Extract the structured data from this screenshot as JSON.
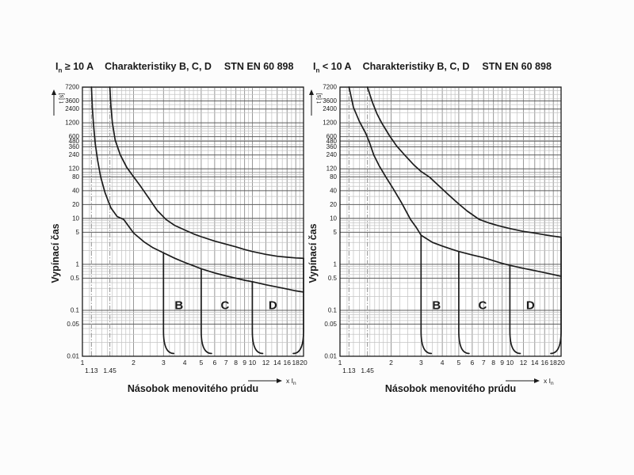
{
  "page": {
    "background": "#fcfcfc"
  },
  "colors": {
    "text": "#1a1a1a",
    "curve": "#1c1c1c",
    "plot_border": "#1c1c1c",
    "grid_minor": "#c4c4c4",
    "grid_mid": "#8d8d8d",
    "grid_labeled": "#5c5c5c",
    "ref_line": "#9e9e9e",
    "plot_bg": "#ffffff"
  },
  "chart_data": [
    {
      "type": "line",
      "title": {
        "symbol": "I",
        "symbol_sub": "n",
        "condition": "≥ 10 A",
        "name": "Charakteristiky B, C, D",
        "standard": "STN EN 60 898"
      },
      "ylabel": "Vypínací čas",
      "y_arrow_label": "t [s]",
      "xlabel": "Násobok menovitého prúdu",
      "x_arrow_label": "x I",
      "x_arrow_sub": "n",
      "xscale": "log",
      "yscale": "log",
      "xlim": [
        1,
        20
      ],
      "ylim": [
        0.01,
        7200
      ],
      "xticks": [
        {
          "v": 1,
          "label": "1"
        },
        {
          "v": 2,
          "label": "2"
        },
        {
          "v": 3,
          "label": "3"
        },
        {
          "v": 4,
          "label": "4"
        },
        {
          "v": 5,
          "label": "5"
        },
        {
          "v": 6,
          "label": "6"
        },
        {
          "v": 7,
          "label": "7"
        },
        {
          "v": 8,
          "label": "8"
        },
        {
          "v": 9,
          "label": "9"
        },
        {
          "v": 10,
          "label": "10"
        },
        {
          "v": 12,
          "label": "12"
        },
        {
          "v": 14,
          "label": "14"
        },
        {
          "v": 16,
          "label": "16"
        },
        {
          "v": 18,
          "label": "18"
        },
        {
          "v": 20,
          "label": "20"
        }
      ],
      "xticks_row2": [
        {
          "v": 1.13,
          "label": "1.13"
        },
        {
          "v": 1.45,
          "label": "1.45"
        }
      ],
      "reference_multiples": [
        1.13,
        1.45
      ],
      "yticks": [
        {
          "v": 7200,
          "label": "7200"
        },
        {
          "v": 3600,
          "label": "3600"
        },
        {
          "v": 2400,
          "label": "2400"
        },
        {
          "v": 1200,
          "label": "1200"
        },
        {
          "v": 600,
          "label": "600"
        },
        {
          "v": 480,
          "label": "480"
        },
        {
          "v": 360,
          "label": "360"
        },
        {
          "v": 240,
          "label": "240"
        },
        {
          "v": 120,
          "label": "120"
        },
        {
          "v": 80,
          "label": "80"
        },
        {
          "v": 40,
          "label": "40"
        },
        {
          "v": 20,
          "label": "20"
        },
        {
          "v": 10,
          "label": "10"
        },
        {
          "v": 5,
          "label": "5"
        },
        {
          "v": 1,
          "label": "1"
        },
        {
          "v": 0.5,
          "label": "0.5"
        },
        {
          "v": 0.1,
          "label": "0.1"
        },
        {
          "v": 0.05,
          "label": "0.05"
        },
        {
          "v": 0.01,
          "label": "0.01"
        }
      ],
      "series": [
        {
          "name": "upper-trip-limit-curve",
          "points": [
            [
              1.45,
              7200
            ],
            [
              1.47,
              2800
            ],
            [
              1.5,
              1200
            ],
            [
              1.56,
              500
            ],
            [
              1.67,
              240
            ],
            [
              1.82,
              130
            ],
            [
              2.0,
              80
            ],
            [
              2.2,
              50
            ],
            [
              2.45,
              28
            ],
            [
              2.75,
              15
            ],
            [
              3.1,
              9.5
            ],
            [
              3.5,
              7.0
            ],
            [
              4,
              5.6
            ],
            [
              4.5,
              4.6
            ],
            [
              5,
              4.0
            ],
            [
              6,
              3.2
            ],
            [
              7,
              2.75
            ],
            [
              8,
              2.4
            ],
            [
              9,
              2.1
            ],
            [
              10,
              1.9
            ],
            [
              12,
              1.65
            ],
            [
              14,
              1.5
            ],
            [
              16,
              1.43
            ],
            [
              18,
              1.38
            ],
            [
              20,
              1.35
            ]
          ]
        },
        {
          "name": "lower-trip-limit-curve",
          "points": [
            [
              1.13,
              7200
            ],
            [
              1.145,
              2400
            ],
            [
              1.165,
              1000
            ],
            [
              1.19,
              420
            ],
            [
              1.23,
              180
            ],
            [
              1.28,
              80
            ],
            [
              1.36,
              36
            ],
            [
              1.47,
              17
            ],
            [
              1.6,
              11
            ],
            [
              1.75,
              9.5
            ],
            [
              2.0,
              4.8
            ],
            [
              2.3,
              3.1
            ],
            [
              2.6,
              2.3
            ],
            [
              3.0,
              1.78
            ],
            [
              3.5,
              1.35
            ],
            [
              4,
              1.1
            ],
            [
              4.5,
              0.93
            ],
            [
              5,
              0.8
            ],
            [
              6,
              0.65
            ],
            [
              7,
              0.56
            ],
            [
              8,
              0.5
            ],
            [
              9,
              0.45
            ],
            [
              10,
              0.42
            ],
            [
              12,
              0.36
            ],
            [
              14,
              0.32
            ],
            [
              16,
              0.29
            ],
            [
              18,
              0.265
            ],
            [
              20,
              0.25
            ]
          ]
        }
      ],
      "instantaneous_verticals": [
        {
          "name": "B-magnetic-trip",
          "x": 3,
          "t_top": 1.78,
          "foot": "right"
        },
        {
          "name": "C-magnetic-trip",
          "x": 5,
          "t_top": 0.8,
          "foot": "right"
        },
        {
          "name": "D-magnetic-trip",
          "x": 10,
          "t_top": 0.42,
          "foot": "right"
        },
        {
          "name": "upper-bound-20x",
          "x": 20,
          "t_top": 1.35,
          "foot": "left"
        }
      ],
      "zone_labels": [
        {
          "text": "B",
          "x": 3.7,
          "t": 0.13
        },
        {
          "text": "C",
          "x": 6.9,
          "t": 0.13
        },
        {
          "text": "D",
          "x": 13.2,
          "t": 0.13
        }
      ]
    },
    {
      "type": "line",
      "title": {
        "symbol": "I",
        "symbol_sub": "n",
        "condition": "< 10 A",
        "name": "Charakteristiky B, C, D",
        "standard": "STN EN 60 898"
      },
      "ylabel": "Vypínací čas",
      "y_arrow_label": "t [s]",
      "xlabel": "Násobok menovitého prúdu",
      "x_arrow_label": "x I",
      "x_arrow_sub": "n",
      "xscale": "log",
      "yscale": "log",
      "xlim": [
        1,
        20
      ],
      "ylim": [
        0.01,
        7200
      ],
      "xticks": [
        {
          "v": 1,
          "label": "1"
        },
        {
          "v": 2,
          "label": "2"
        },
        {
          "v": 3,
          "label": "3"
        },
        {
          "v": 4,
          "label": "4"
        },
        {
          "v": 5,
          "label": "5"
        },
        {
          "v": 6,
          "label": "6"
        },
        {
          "v": 7,
          "label": "7"
        },
        {
          "v": 8,
          "label": "8"
        },
        {
          "v": 9,
          "label": "9"
        },
        {
          "v": 10,
          "label": "10"
        },
        {
          "v": 12,
          "label": "12"
        },
        {
          "v": 14,
          "label": "14"
        },
        {
          "v": 16,
          "label": "16"
        },
        {
          "v": 18,
          "label": "18"
        },
        {
          "v": 20,
          "label": "20"
        }
      ],
      "xticks_row2": [
        {
          "v": 1.13,
          "label": "1.13"
        },
        {
          "v": 1.45,
          "label": "1.45"
        }
      ],
      "reference_multiples": [
        1.13,
        1.45
      ],
      "yticks": [
        {
          "v": 7200,
          "label": "7200"
        },
        {
          "v": 3600,
          "label": "3600"
        },
        {
          "v": 2400,
          "label": "2400"
        },
        {
          "v": 1200,
          "label": "1200"
        },
        {
          "v": 600,
          "label": "600"
        },
        {
          "v": 480,
          "label": "480"
        },
        {
          "v": 360,
          "label": "360"
        },
        {
          "v": 240,
          "label": "240"
        },
        {
          "v": 120,
          "label": "120"
        },
        {
          "v": 80,
          "label": "80"
        },
        {
          "v": 40,
          "label": "40"
        },
        {
          "v": 20,
          "label": "20"
        },
        {
          "v": 10,
          "label": "10"
        },
        {
          "v": 5,
          "label": "5"
        },
        {
          "v": 1,
          "label": "1"
        },
        {
          "v": 0.5,
          "label": "0.5"
        },
        {
          "v": 0.1,
          "label": "0.1"
        },
        {
          "v": 0.05,
          "label": "0.05"
        },
        {
          "v": 0.01,
          "label": "0.01"
        }
      ],
      "series": [
        {
          "name": "upper-trip-limit-curve",
          "points": [
            [
              1.45,
              7200
            ],
            [
              1.55,
              3400
            ],
            [
              1.65,
              1900
            ],
            [
              1.76,
              1200
            ],
            [
              1.95,
              640
            ],
            [
              2.15,
              380
            ],
            [
              2.4,
              240
            ],
            [
              2.7,
              150
            ],
            [
              3.0,
              105
            ],
            [
              3.35,
              80
            ],
            [
              3.8,
              52
            ],
            [
              4.3,
              34
            ],
            [
              4.9,
              22
            ],
            [
              5.6,
              14.5
            ],
            [
              6.6,
              9.5
            ],
            [
              7.5,
              8.0
            ],
            [
              8.5,
              7.0
            ],
            [
              10,
              6.0
            ],
            [
              12,
              5.2
            ],
            [
              14,
              4.8
            ],
            [
              16,
              4.4
            ],
            [
              18,
              4.1
            ],
            [
              20,
              3.9
            ]
          ]
        },
        {
          "name": "lower-trip-limit-curve",
          "points": [
            [
              1.13,
              7200
            ],
            [
              1.2,
              2600
            ],
            [
              1.3,
              1300
            ],
            [
              1.42,
              700
            ],
            [
              1.5,
              420
            ],
            [
              1.58,
              240
            ],
            [
              1.7,
              140
            ],
            [
              1.86,
              80
            ],
            [
              2.05,
              45
            ],
            [
              2.3,
              22
            ],
            [
              2.6,
              9.5
            ],
            [
              2.8,
              6.5
            ],
            [
              3.0,
              4.3
            ],
            [
              3.5,
              3.0
            ],
            [
              4,
              2.5
            ],
            [
              4.5,
              2.15
            ],
            [
              5,
              1.9
            ],
            [
              6,
              1.6
            ],
            [
              7,
              1.4
            ],
            [
              8,
              1.2
            ],
            [
              9,
              1.05
            ],
            [
              10,
              0.95
            ],
            [
              12,
              0.82
            ],
            [
              14,
              0.73
            ],
            [
              16,
              0.66
            ],
            [
              18,
              0.6
            ],
            [
              20,
              0.55
            ]
          ]
        }
      ],
      "instantaneous_verticals": [
        {
          "name": "B-magnetic-trip",
          "x": 3,
          "t_top": 4.3,
          "foot": "right"
        },
        {
          "name": "C-magnetic-trip",
          "x": 5,
          "t_top": 1.9,
          "foot": "right"
        },
        {
          "name": "D-magnetic-trip",
          "x": 10,
          "t_top": 0.95,
          "foot": "right"
        },
        {
          "name": "upper-bound-20x",
          "x": 20,
          "t_top": 3.9,
          "foot": "left"
        }
      ],
      "zone_labels": [
        {
          "text": "B",
          "x": 3.7,
          "t": 0.13
        },
        {
          "text": "C",
          "x": 6.9,
          "t": 0.13
        },
        {
          "text": "D",
          "x": 13.2,
          "t": 0.13
        }
      ]
    }
  ]
}
